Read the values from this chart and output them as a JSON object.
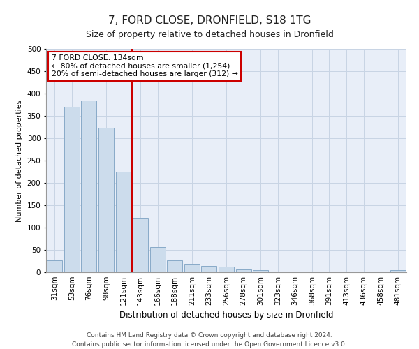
{
  "title": "7, FORD CLOSE, DRONFIELD, S18 1TG",
  "subtitle": "Size of property relative to detached houses in Dronfield",
  "xlabel": "Distribution of detached houses by size in Dronfield",
  "ylabel": "Number of detached properties",
  "footer_line1": "Contains HM Land Registry data © Crown copyright and database right 2024.",
  "footer_line2": "Contains public sector information licensed under the Open Government Licence v3.0.",
  "categories": [
    "31sqm",
    "53sqm",
    "76sqm",
    "98sqm",
    "121sqm",
    "143sqm",
    "166sqm",
    "188sqm",
    "211sqm",
    "233sqm",
    "256sqm",
    "278sqm",
    "301sqm",
    "323sqm",
    "346sqm",
    "368sqm",
    "391sqm",
    "413sqm",
    "436sqm",
    "458sqm",
    "481sqm"
  ],
  "values": [
    26,
    370,
    385,
    323,
    225,
    120,
    57,
    26,
    19,
    14,
    12,
    6,
    4,
    2,
    1,
    0,
    1,
    0,
    0,
    0,
    4
  ],
  "bar_color": "#ccdcec",
  "bar_edge_color": "#88aac8",
  "grid_color": "#c8d4e4",
  "background_color": "#e8eef8",
  "vline_color": "#cc0000",
  "annotation_line1": "7 FORD CLOSE: 134sqm",
  "annotation_line2": "← 80% of detached houses are smaller (1,254)",
  "annotation_line3": "20% of semi-detached houses are larger (312) →",
  "annotation_box_facecolor": "#ffffff",
  "annotation_box_edgecolor": "#cc0000",
  "ylim": [
    0,
    500
  ],
  "yticks": [
    0,
    50,
    100,
    150,
    200,
    250,
    300,
    350,
    400,
    450,
    500
  ],
  "title_fontsize": 11,
  "subtitle_fontsize": 9,
  "xlabel_fontsize": 8.5,
  "ylabel_fontsize": 8,
  "tick_fontsize": 7.5,
  "footer_fontsize": 6.5
}
